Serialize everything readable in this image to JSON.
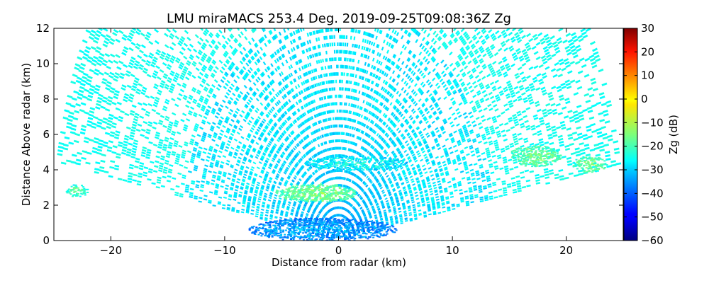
{
  "chart_data": {
    "type": "heatmap",
    "title": "LMU miraMACS 253.4 Deg. 2019-09-25T09:08:36Z  Zg",
    "xlabel": "Distance from radar (km)",
    "ylabel": "Distance Above radar  (km)",
    "xlim": [
      -25,
      25
    ],
    "ylim": [
      0,
      12
    ],
    "xticks": [
      -20,
      -10,
      0,
      10,
      20
    ],
    "yticks": [
      0,
      2,
      4,
      6,
      8,
      10,
      12
    ],
    "grid": false,
    "colorbar": {
      "label": "Zg (dB)",
      "range": [
        -60,
        30
      ],
      "ticks": [
        30,
        20,
        10,
        0,
        -10,
        -20,
        -30,
        -40,
        -50,
        -60
      ],
      "colormap": "jet"
    },
    "scan": {
      "max_range_km": 25,
      "min_elevation_deg": 10
    },
    "features": [
      {
        "x_range": [
          -8,
          5
        ],
        "y_range": [
          0,
          1.3
        ],
        "zg_db": -38
      },
      {
        "x_range": [
          -5.5,
          1.5
        ],
        "y_range": [
          2.2,
          3.2
        ],
        "zg_db": -20
      },
      {
        "x_range": [
          15,
          19.5
        ],
        "y_range": [
          4.2,
          5.4
        ],
        "zg_db": -22
      },
      {
        "x_range": [
          20.5,
          23.5
        ],
        "y_range": [
          3.9,
          4.8
        ],
        "zg_db": -22
      },
      {
        "x_range": [
          -3,
          6
        ],
        "y_range": [
          4.0,
          4.8
        ],
        "zg_db": -30
      },
      {
        "x_range": [
          -24,
          -22
        ],
        "y_range": [
          2.5,
          3.2
        ],
        "zg_db": -24
      }
    ]
  }
}
